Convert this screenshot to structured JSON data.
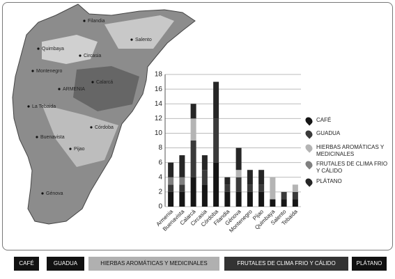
{
  "chart_data": {
    "type": "stacked-bar",
    "categories": [
      "Armenia",
      "Buenavista",
      "Calarcá",
      "Circasia",
      "Córdoba",
      "Filandia",
      "Génova",
      "Montenegro",
      "Pijao",
      "Quimbaya",
      "Salento",
      "Tebaida"
    ],
    "series": [
      {
        "name": "CAFÉ",
        "color": "#151515",
        "values": [
          2,
          2,
          4,
          3,
          6,
          2,
          2,
          2,
          2,
          1,
          1,
          1
        ]
      },
      {
        "name": "GUADUA",
        "color": "#3a3a3a",
        "values": [
          1,
          1,
          5,
          2,
          6,
          1,
          2,
          1,
          1,
          0,
          1,
          1
        ]
      },
      {
        "name": "HIERBAS AROMÁTICAS Y MEDICINALES",
        "color": "#b4b4b4",
        "values": [
          0,
          0,
          3,
          0,
          0,
          0,
          1,
          0,
          0,
          3,
          0,
          1
        ]
      },
      {
        "name": "FRUTALES DE CLIMA FRIO Y CÁLIDO",
        "color": "#808080",
        "values": [
          1,
          1,
          0,
          0,
          0,
          0,
          0,
          0,
          0,
          0,
          0,
          0
        ]
      },
      {
        "name": "PLÁTANO",
        "color": "#262626",
        "values": [
          2,
          3,
          2,
          2,
          5,
          1,
          3,
          2,
          2,
          0,
          0,
          0
        ]
      }
    ],
    "ylim": [
      0,
      18
    ],
    "yticks": [
      0,
      2,
      4,
      6,
      8,
      10,
      12,
      14,
      16,
      18
    ],
    "grid": true
  },
  "map": {
    "towns": [
      "Filandia",
      "Quimbaya",
      "Salento",
      "Circasia",
      "Montenegro",
      "ARMENIA",
      "Calarcá",
      "La Tebaida",
      "Córdoba",
      "Buenavista",
      "Pijao",
      "Génova"
    ]
  }
}
